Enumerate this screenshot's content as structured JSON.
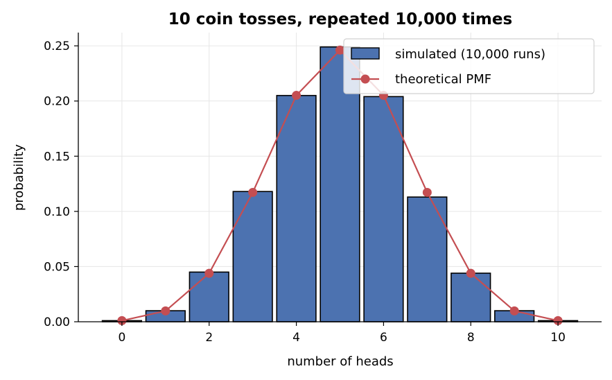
{
  "chart_data": {
    "type": "bar",
    "title": "10 coin tosses, repeated 10,000 times",
    "xlabel": "number of heads",
    "ylabel": "probability",
    "xlim": [
      -1,
      11
    ],
    "ylim": [
      0,
      0.262
    ],
    "xticks": [
      0,
      2,
      4,
      6,
      8,
      10
    ],
    "yticks": [
      0.0,
      0.05,
      0.1,
      0.15,
      0.2,
      0.25
    ],
    "ytick_labels": [
      "0.00",
      "0.05",
      "0.10",
      "0.15",
      "0.20",
      "0.25"
    ],
    "grid": true,
    "legend_position": "top-right",
    "series": [
      {
        "name": "simulated (10,000 runs)",
        "kind": "bar",
        "color": "#4c72b0",
        "x": [
          0,
          1,
          2,
          3,
          4,
          5,
          6,
          7,
          8,
          9,
          10
        ],
        "values": [
          0.001,
          0.01,
          0.045,
          0.118,
          0.205,
          0.249,
          0.204,
          0.113,
          0.044,
          0.01,
          0.001
        ]
      },
      {
        "name": "theoretical PMF",
        "kind": "line",
        "marker": "circle",
        "color": "#c44e52",
        "x": [
          0,
          1,
          2,
          3,
          4,
          5,
          6,
          7,
          8,
          9,
          10
        ],
        "values": [
          0.001,
          0.0098,
          0.0439,
          0.1172,
          0.2051,
          0.2461,
          0.2051,
          0.1172,
          0.0439,
          0.0098,
          0.001
        ]
      }
    ]
  }
}
